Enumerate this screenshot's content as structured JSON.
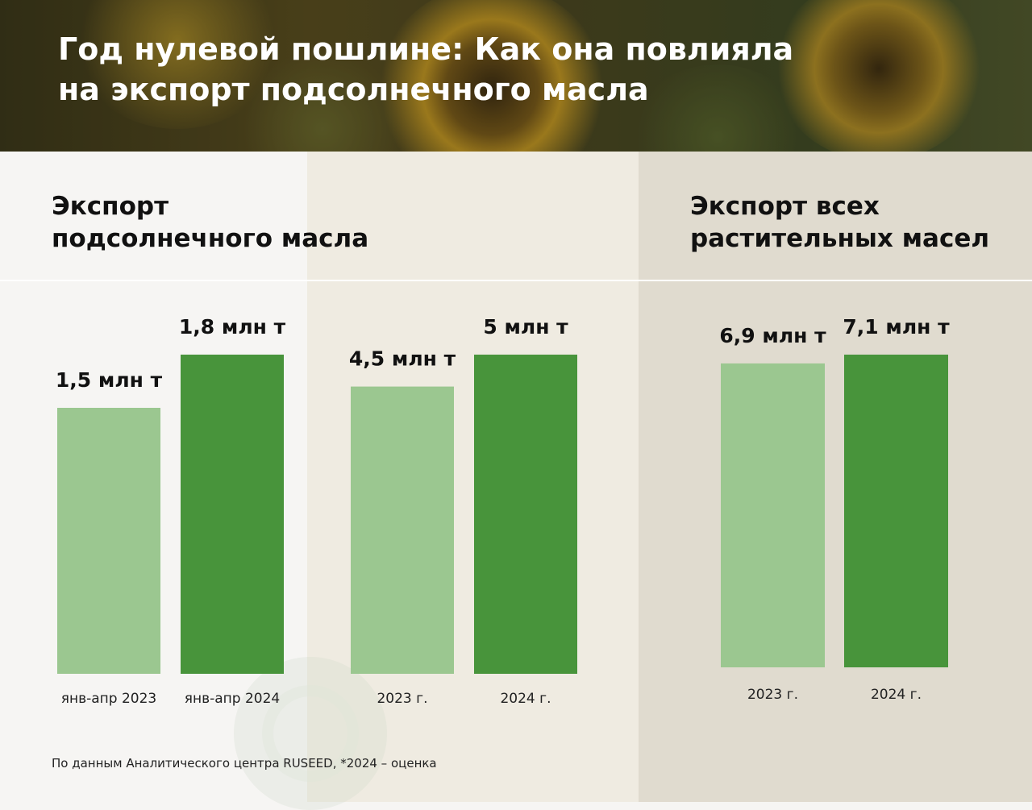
{
  "header": {
    "title_line1": "Год нулевой пошлине: Как она повлияла",
    "title_line2": "на экспорт подсолнечного масла"
  },
  "sections": {
    "sunflower_title_line1": "Экспорт",
    "sunflower_title_line2": "подсолнечного масла",
    "all_oils_title_line1": "Экспорт всех",
    "all_oils_title_line2": "растительных масел"
  },
  "chart_data": [
    {
      "type": "bar",
      "title": "Экспорт подсолнечного масла",
      "categories": [
        "янв-апр 2023",
        "янв-апр 2024"
      ],
      "values": [
        1.5,
        1.8
      ],
      "value_labels": [
        "1,5 млн т",
        "1,8 млн т"
      ],
      "unit": "млн т"
    },
    {
      "type": "bar",
      "title": "Экспорт подсолнечного масла",
      "categories": [
        "2023 г.",
        "2024 г."
      ],
      "values": [
        4.5,
        5
      ],
      "value_labels": [
        "4,5 млн т",
        "5 млн т"
      ],
      "unit": "млн т"
    },
    {
      "type": "bar",
      "title": "Экспорт всех растительных масел",
      "categories": [
        "2023 г.",
        "2024 г."
      ],
      "values": [
        6.9,
        7.1
      ],
      "value_labels": [
        "6,9 млн т",
        "7,1 млн т"
      ],
      "unit": "млн т"
    }
  ],
  "colors": {
    "bar_2023": "#9bc790",
    "bar_2024": "#48943b"
  },
  "footer": {
    "source": "По данным Аналитического центра RUSEED, *2024 – оценка"
  }
}
